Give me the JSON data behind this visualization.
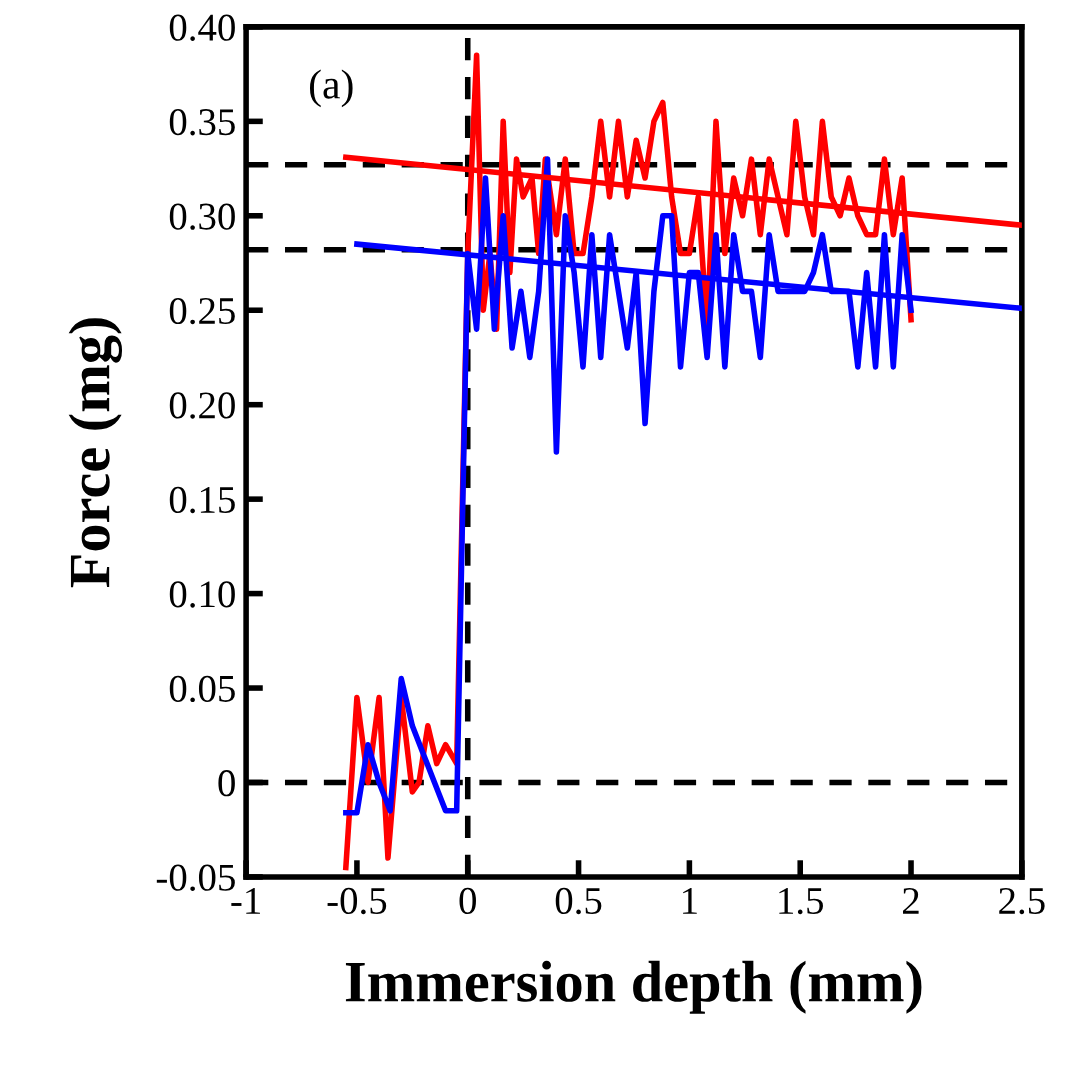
{
  "chart_data": {
    "type": "line",
    "xlabel": "Immersion depth (mm)",
    "ylabel": "Force (mg)",
    "annotations": [
      "(a)"
    ],
    "xlim": [
      -1,
      2.5
    ],
    "xticks": [
      -1,
      -0.5,
      0,
      0.5,
      1,
      1.5,
      2,
      2.5
    ],
    "ylim": [
      -0.05,
      0.4
    ],
    "yticks": [
      -0.05,
      {
        "value": 0,
        "label": "0"
      },
      {
        "value": 0.05,
        "label": "0.05"
      },
      {
        "value": 0.1,
        "label": "0.10"
      },
      {
        "value": 0.15,
        "label": "0.15"
      },
      {
        "value": 0.2,
        "label": "0.20"
      },
      {
        "value": 0.25,
        "label": "0.25"
      },
      {
        "value": 0.3,
        "label": "0.30"
      },
      {
        "value": 0.35,
        "label": "0.35"
      },
      {
        "value": 0.4,
        "label": "0.40"
      }
    ],
    "grid": false,
    "legend": false,
    "marker": "none",
    "line_style": "solid",
    "series": [
      {
        "color": "#ff0000",
        "x": [
          -0.55,
          -0.5,
          -0.45,
          -0.4,
          -0.36,
          -0.3,
          -0.25,
          -0.22,
          -0.18,
          -0.14,
          -0.1,
          -0.05,
          0.0,
          0.04,
          0.07,
          0.1,
          0.13,
          0.16,
          0.19,
          0.22,
          0.25,
          0.29,
          0.32,
          0.35,
          0.4,
          0.44,
          0.48,
          0.52,
          0.56,
          0.6,
          0.64,
          0.68,
          0.72,
          0.76,
          0.8,
          0.84,
          0.88,
          0.92,
          0.96,
          1.0,
          1.04,
          1.08,
          1.12,
          1.16,
          1.2,
          1.24,
          1.28,
          1.32,
          1.36,
          1.4,
          1.44,
          1.48,
          1.52,
          1.56,
          1.6,
          1.64,
          1.68,
          1.72,
          1.76,
          1.8,
          1.84,
          1.88,
          1.92,
          1.96,
          2.0
        ],
        "values": [
          -0.045,
          0.045,
          0.0,
          0.045,
          -0.04,
          0.045,
          -0.005,
          0.0,
          0.03,
          0.01,
          0.02,
          0.01,
          0.28,
          0.385,
          0.25,
          0.28,
          0.24,
          0.35,
          0.27,
          0.33,
          0.31,
          0.32,
          0.28,
          0.33,
          0.29,
          0.33,
          0.28,
          0.28,
          0.31,
          0.35,
          0.31,
          0.35,
          0.31,
          0.34,
          0.32,
          0.35,
          0.36,
          0.31,
          0.28,
          0.28,
          0.31,
          0.24,
          0.35,
          0.28,
          0.32,
          0.3,
          0.33,
          0.29,
          0.33,
          0.31,
          0.29,
          0.35,
          0.31,
          0.29,
          0.35,
          0.31,
          0.3,
          0.32,
          0.3,
          0.29,
          0.29,
          0.33,
          0.29,
          0.32,
          0.245
        ]
      },
      {
        "color": "#0000ff",
        "x": [
          -0.55,
          -0.5,
          -0.45,
          -0.4,
          -0.35,
          -0.3,
          -0.25,
          -0.2,
          -0.15,
          -0.1,
          -0.05,
          0.0,
          0.04,
          0.08,
          0.12,
          0.16,
          0.2,
          0.24,
          0.28,
          0.32,
          0.36,
          0.4,
          0.44,
          0.48,
          0.52,
          0.56,
          0.6,
          0.64,
          0.68,
          0.72,
          0.76,
          0.8,
          0.84,
          0.88,
          0.92,
          0.96,
          1.0,
          1.04,
          1.08,
          1.12,
          1.16,
          1.2,
          1.24,
          1.28,
          1.32,
          1.36,
          1.4,
          1.44,
          1.48,
          1.52,
          1.56,
          1.6,
          1.64,
          1.68,
          1.72,
          1.76,
          1.8,
          1.84,
          1.88,
          1.92,
          1.96,
          2.0
        ],
        "values": [
          -0.016,
          -0.016,
          0.02,
          0.0,
          -0.015,
          0.055,
          0.03,
          0.015,
          0.0,
          -0.015,
          -0.015,
          0.28,
          0.24,
          0.32,
          0.24,
          0.3,
          0.23,
          0.26,
          0.225,
          0.26,
          0.33,
          0.175,
          0.3,
          0.27,
          0.22,
          0.29,
          0.225,
          0.29,
          0.26,
          0.23,
          0.27,
          0.19,
          0.26,
          0.3,
          0.3,
          0.22,
          0.27,
          0.27,
          0.225,
          0.29,
          0.22,
          0.29,
          0.26,
          0.26,
          0.225,
          0.29,
          0.26,
          0.26,
          0.26,
          0.26,
          0.27,
          0.29,
          0.26,
          0.26,
          0.26,
          0.22,
          0.27,
          0.22,
          0.29,
          0.22,
          0.29,
          0.25
        ]
      },
      {
        "color": "#ff0000",
        "x": [
          -0.55,
          2.5
        ],
        "values": [
          0.331,
          0.295
        ]
      },
      {
        "color": "#0000ff",
        "x": [
          -0.5,
          2.5
        ],
        "values": [
          0.285,
          0.251
        ]
      }
    ],
    "ref_lines": [
      {
        "axis": "y",
        "value": 0.327,
        "color": "#000000",
        "line_style": "dashed"
      },
      {
        "axis": "y",
        "value": 0.282,
        "color": "#000000",
        "line_style": "dashed"
      },
      {
        "axis": "y",
        "value": 0,
        "color": "#000000",
        "line_style": "dashed"
      },
      {
        "axis": "x",
        "value": 0,
        "color": "#000000",
        "line_style": "dashed"
      }
    ]
  }
}
